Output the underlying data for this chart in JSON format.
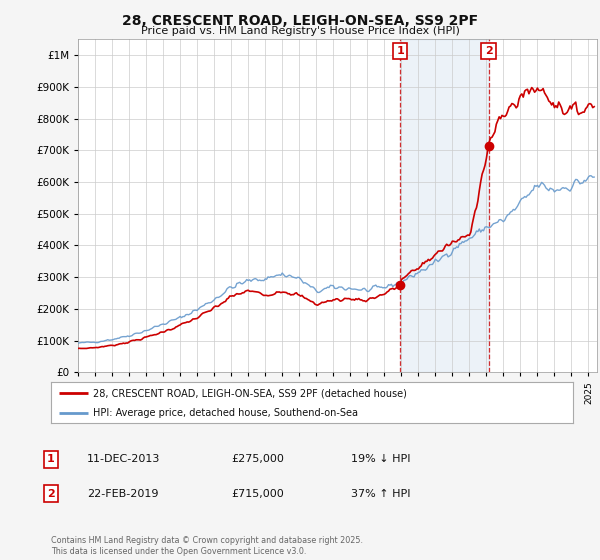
{
  "title": "28, CRESCENT ROAD, LEIGH-ON-SEA, SS9 2PF",
  "subtitle": "Price paid vs. HM Land Registry's House Price Index (HPI)",
  "legend_line1": "28, CRESCENT ROAD, LEIGH-ON-SEA, SS9 2PF (detached house)",
  "legend_line2": "HPI: Average price, detached house, Southend-on-Sea",
  "transaction1_date": "11-DEC-2013",
  "transaction1_price": "£275,000",
  "transaction1_hpi": "19% ↓ HPI",
  "transaction2_date": "22-FEB-2019",
  "transaction2_price": "£715,000",
  "transaction2_hpi": "37% ↑ HPI",
  "footer": "Contains HM Land Registry data © Crown copyright and database right 2025.\nThis data is licensed under the Open Government Licence v3.0.",
  "line_color_red": "#cc0000",
  "line_color_blue": "#6699cc",
  "background_color": "#f5f5f5",
  "plot_bg_color": "#ffffff",
  "ylim": [
    0,
    1050000
  ],
  "xlim_start": 1995.0,
  "xlim_end": 2025.5,
  "transaction1_x": 2013.94,
  "transaction2_x": 2019.13,
  "transaction1_y": 275000,
  "transaction2_y": 715000
}
